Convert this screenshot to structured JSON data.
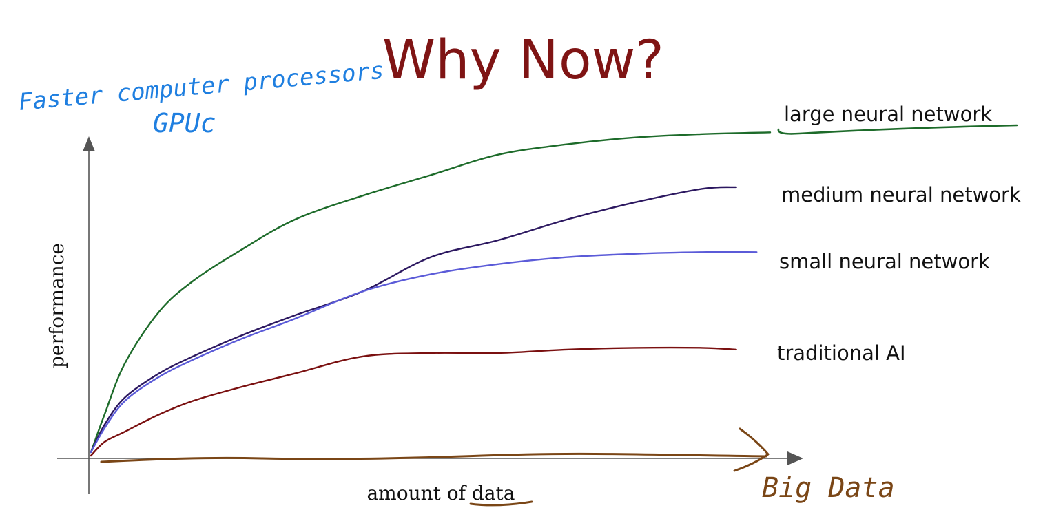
{
  "slide": {
    "title": "Why Now?",
    "title_color": "#7f1414"
  },
  "annotations": {
    "processors": "Faster computer processors",
    "gpus": "GPUc",
    "big_data": "Big Data",
    "blue_ink": "#1f7fe0",
    "brown_ink": "#7a4616"
  },
  "chart_data": {
    "type": "line",
    "xlabel": "amount of data",
    "ylabel": "performance",
    "xlim": [
      0,
      100
    ],
    "ylim": [
      0,
      100
    ],
    "grid": false,
    "legend": "right, inline labels",
    "series": [
      {
        "name": "large neural network",
        "color": "#1d6b2a",
        "x": [
          0,
          2,
          5,
          10,
          15,
          22,
          30,
          40,
          50,
          60,
          70,
          80,
          90,
          100
        ],
        "y": [
          1,
          12,
          27,
          42,
          51,
          60,
          69,
          76,
          82,
          88,
          91,
          93,
          94,
          94.5
        ]
      },
      {
        "name": "medium neural network",
        "color": "#2c1860",
        "x": [
          0,
          2,
          5,
          10,
          15,
          22,
          30,
          40,
          50,
          60,
          70,
          80,
          90,
          95
        ],
        "y": [
          1,
          9,
          17,
          24,
          29,
          35,
          41,
          48,
          58,
          63,
          69,
          74,
          78,
          78.5
        ]
      },
      {
        "name": "small neural network",
        "color": "#5b5bd8",
        "x": [
          0,
          2,
          5,
          10,
          15,
          22,
          30,
          40,
          50,
          60,
          70,
          80,
          90,
          98
        ],
        "y": [
          1,
          8,
          16,
          23,
          28,
          34,
          40,
          48,
          53,
          56,
          58,
          59,
          59.5,
          59.5
        ]
      },
      {
        "name": "traditional AI",
        "color": "#7a1010",
        "x": [
          0,
          2,
          5,
          10,
          15,
          22,
          30,
          40,
          50,
          60,
          70,
          80,
          90,
          95
        ],
        "y": [
          0,
          4,
          7,
          12,
          16,
          20,
          24,
          29,
          30,
          30,
          31,
          31.5,
          31.5,
          31
        ]
      }
    ]
  }
}
